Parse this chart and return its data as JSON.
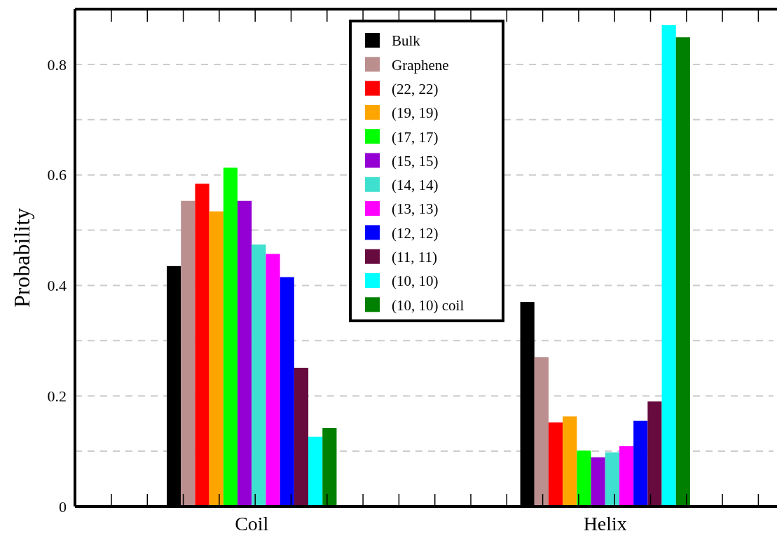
{
  "chart_data": {
    "type": "bar",
    "ylabel": "Probability",
    "categories": [
      "Coil",
      "Helix"
    ],
    "ylim": [
      0,
      0.9
    ],
    "yticks": [
      0,
      {
        "value": 0.1,
        "label": null
      },
      0.2,
      {
        "value": 0.3,
        "label": null
      },
      0.4,
      {
        "value": 0.5,
        "label": null
      },
      0.6,
      {
        "value": 0.7,
        "label": null
      },
      0.8
    ],
    "grid": "y",
    "legend": "top",
    "series": [
      {
        "name": "Bulk",
        "color": "#000000",
        "values": [
          0.435,
          0.37
        ]
      },
      {
        "name": "Graphene",
        "color": "#bc8f8f",
        "values": [
          0.553,
          0.27
        ]
      },
      {
        "name": "(22, 22)",
        "color": "#ff0000",
        "values": [
          0.584,
          0.152
        ]
      },
      {
        "name": "(19, 19)",
        "color": "#ffa500",
        "values": [
          0.534,
          0.163
        ]
      },
      {
        "name": "(17, 17)",
        "color": "#00ff00",
        "values": [
          0.613,
          0.101
        ]
      },
      {
        "name": "(15, 15)",
        "color": "#9400d3",
        "values": [
          0.553,
          0.089
        ]
      },
      {
        "name": "(14, 14)",
        "color": "#40e0d0",
        "values": [
          0.474,
          0.098
        ]
      },
      {
        "name": "(13, 13)",
        "color": "#ff00ff",
        "values": [
          0.457,
          0.109
        ]
      },
      {
        "name": "(12, 12)",
        "color": "#0000ff",
        "values": [
          0.415,
          0.155
        ]
      },
      {
        "name": "(11, 11)",
        "color": "#670a3e",
        "values": [
          0.251,
          0.19
        ]
      },
      {
        "name": "(10, 10)",
        "color": "#00ffff",
        "values": [
          0.126,
          0.871
        ]
      },
      {
        "name": "(10, 10) coil",
        "color": "#008000",
        "values": [
          0.142,
          0.849
        ]
      }
    ]
  }
}
